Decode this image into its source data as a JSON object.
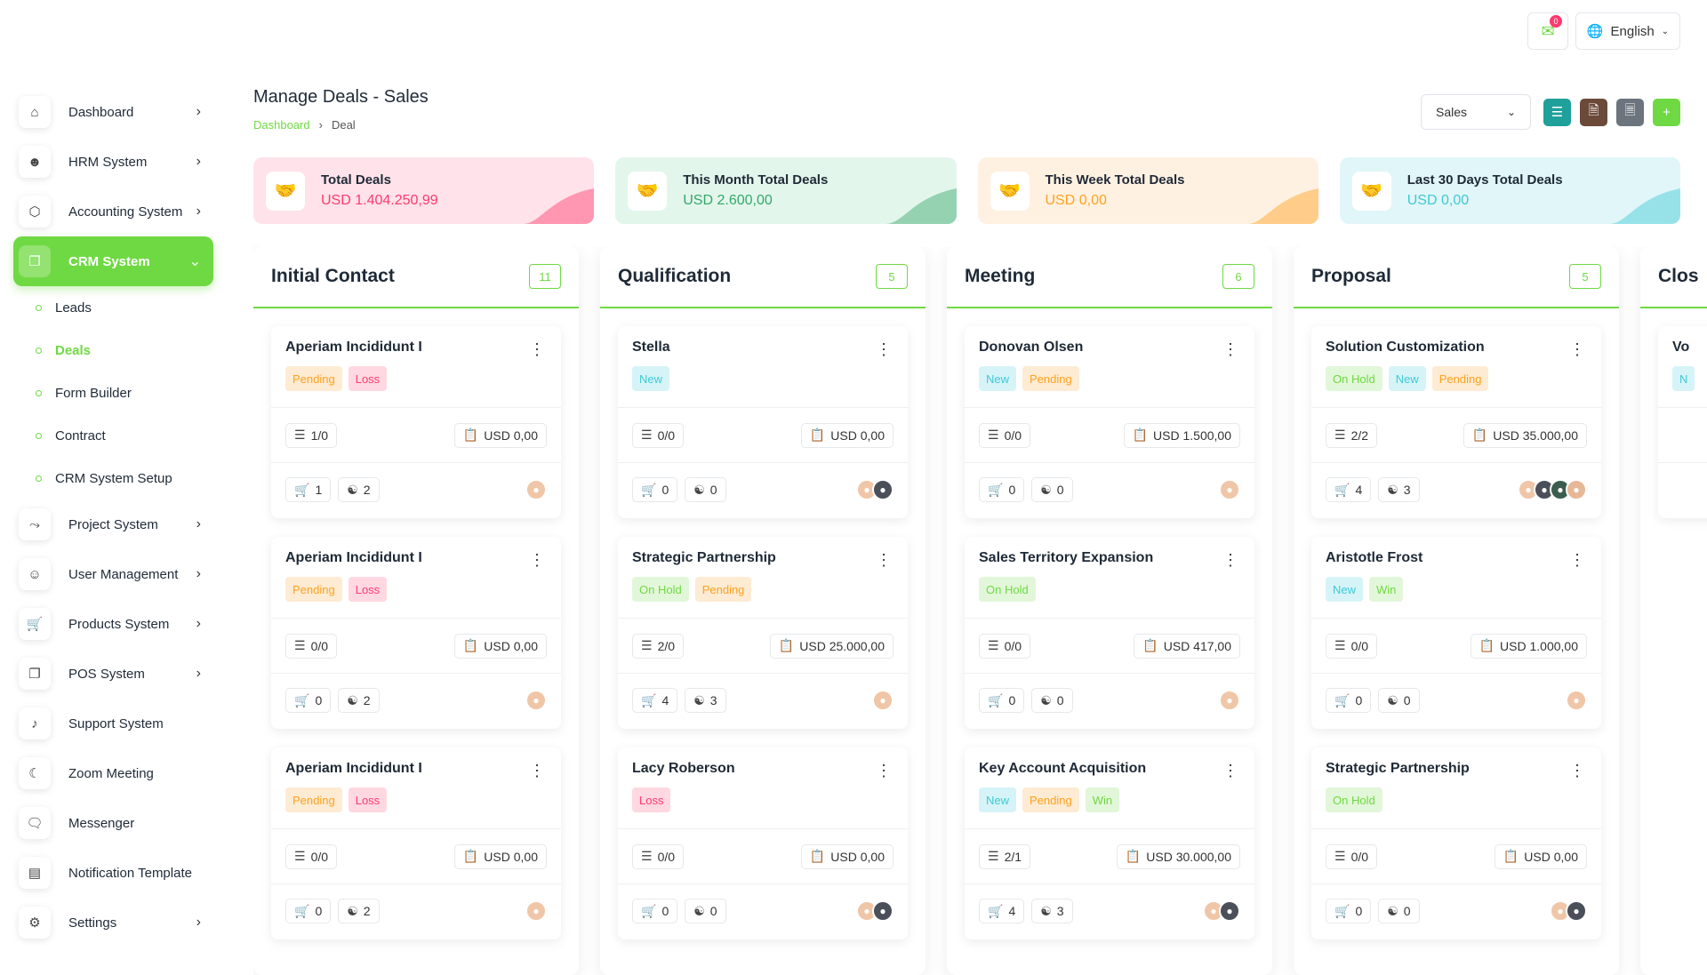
{
  "header": {
    "notification_count": "0",
    "language": "English"
  },
  "sidebar": {
    "items": [
      {
        "label": "Dashboard",
        "icon": "home-icon",
        "chevron": true
      },
      {
        "label": "HRM System",
        "icon": "user-icon",
        "chevron": true
      },
      {
        "label": "Accounting System",
        "icon": "box-icon",
        "chevron": true
      },
      {
        "label": "CRM System",
        "icon": "layers-icon",
        "chevron": true,
        "active": true
      },
      {
        "label": "Project System",
        "icon": "share-icon",
        "chevron": true
      },
      {
        "label": "User Management",
        "icon": "users-icon",
        "chevron": true
      },
      {
        "label": "Products System",
        "icon": "cart-icon",
        "chevron": true
      },
      {
        "label": "POS System",
        "icon": "layers-icon",
        "chevron": true
      },
      {
        "label": "Support System",
        "icon": "headphones-icon",
        "chevron": false
      },
      {
        "label": "Zoom Meeting",
        "icon": "user-video-icon",
        "chevron": false
      },
      {
        "label": "Messenger",
        "icon": "chat-icon",
        "chevron": false
      },
      {
        "label": "Notification Template",
        "icon": "notification-icon",
        "chevron": false
      },
      {
        "label": "Settings",
        "icon": "settings-icon",
        "chevron": true
      }
    ],
    "crm_sub": [
      "Leads",
      "Deals",
      "Form Builder",
      "Contract",
      "CRM System Setup"
    ]
  },
  "page": {
    "title": "Manage Deals - Sales",
    "breadcrumb_home": "Dashboard",
    "breadcrumb_current": "Deal",
    "pipeline": "Sales"
  },
  "stats": [
    {
      "label": "Total Deals",
      "value": "USD 1.404.250,99",
      "color": "#ff3a6e",
      "bg": "#ffe2ea"
    },
    {
      "label": "This Month Total Deals",
      "value": "USD 2.600,00",
      "color": "#33a76a",
      "bg": "#e3f6ec"
    },
    {
      "label": "This Week Total Deals",
      "value": "USD 0,00",
      "color": "#ffa21d",
      "bg": "#fff1e2"
    },
    {
      "label": "Last 30 Days Total Deals",
      "value": "USD 0,00",
      "color": "#3ec9d6",
      "bg": "#e1f6f8"
    }
  ],
  "columns": [
    {
      "title": "Initial Contact",
      "count": "11",
      "cards": [
        {
          "title": "Aperiam Incididunt I",
          "tags": [
            [
              "Pending",
              "pending"
            ],
            [
              "Loss",
              "loss"
            ]
          ],
          "tasks": "1/0",
          "price": "USD 0,00",
          "products": "1",
          "sources": "2",
          "avatars": 1
        },
        {
          "title": "Aperiam Incididunt I",
          "tags": [
            [
              "Pending",
              "pending"
            ],
            [
              "Loss",
              "loss"
            ]
          ],
          "tasks": "0/0",
          "price": "USD 0,00",
          "products": "0",
          "sources": "2",
          "avatars": 1
        },
        {
          "title": "Aperiam Incididunt I",
          "tags": [
            [
              "Pending",
              "pending"
            ],
            [
              "Loss",
              "loss"
            ]
          ],
          "tasks": "0/0",
          "price": "USD 0,00",
          "products": "0",
          "sources": "2",
          "avatars": 1
        }
      ]
    },
    {
      "title": "Qualification",
      "count": "5",
      "cards": [
        {
          "title": "Stella",
          "tags": [
            [
              "New",
              "new"
            ]
          ],
          "tasks": "0/0",
          "price": "USD 0,00",
          "products": "0",
          "sources": "0",
          "avatars": 2
        },
        {
          "title": "Strategic Partnership",
          "tags": [
            [
              "On Hold",
              "onhold"
            ],
            [
              "Pending",
              "pending"
            ]
          ],
          "tasks": "2/0",
          "price": "USD 25.000,00",
          "products": "4",
          "sources": "3",
          "avatars": 1
        },
        {
          "title": "Lacy Roberson",
          "tags": [
            [
              "Loss",
              "loss"
            ]
          ],
          "tasks": "0/0",
          "price": "USD 0,00",
          "products": "0",
          "sources": "0",
          "avatars": 2
        }
      ]
    },
    {
      "title": "Meeting",
      "count": "6",
      "cards": [
        {
          "title": "Donovan Olsen",
          "tags": [
            [
              "New",
              "new"
            ],
            [
              "Pending",
              "pending"
            ]
          ],
          "tasks": "0/0",
          "price": "USD 1.500,00",
          "products": "0",
          "sources": "0",
          "avatars": 1
        },
        {
          "title": "Sales Territory Expansion",
          "tags": [
            [
              "On Hold",
              "onhold"
            ]
          ],
          "tasks": "0/0",
          "price": "USD 417,00",
          "products": "0",
          "sources": "0",
          "avatars": 1
        },
        {
          "title": "Key Account Acquisition",
          "tags": [
            [
              "New",
              "new"
            ],
            [
              "Pending",
              "pending"
            ],
            [
              "Win",
              "win"
            ]
          ],
          "tasks": "2/1",
          "price": "USD 30.000,00",
          "products": "4",
          "sources": "3",
          "avatars": 2
        }
      ]
    },
    {
      "title": "Proposal",
      "count": "5",
      "cards": [
        {
          "title": "Solution Customization",
          "tags": [
            [
              "On Hold",
              "onhold"
            ],
            [
              "New",
              "new"
            ],
            [
              "Pending",
              "pending"
            ]
          ],
          "tasks": "2/2",
          "price": "USD 35.000,00",
          "products": "4",
          "sources": "3",
          "avatars": 4
        },
        {
          "title": "Aristotle Frost",
          "tags": [
            [
              "New",
              "new"
            ],
            [
              "Win",
              "win"
            ]
          ],
          "tasks": "0/0",
          "price": "USD 1.000,00",
          "products": "0",
          "sources": "0",
          "avatars": 1
        },
        {
          "title": "Strategic Partnership",
          "tags": [
            [
              "On Hold",
              "onhold"
            ]
          ],
          "tasks": "0/0",
          "price": "USD 0,00",
          "products": "0",
          "sources": "0",
          "avatars": 2
        }
      ]
    },
    {
      "title": "Clos",
      "count": "",
      "cards": [
        {
          "title": "Vo",
          "tags": [
            [
              "N",
              "new"
            ]
          ],
          "tasks": "",
          "price": "",
          "products": "",
          "sources": "",
          "avatars": 0
        }
      ]
    }
  ]
}
